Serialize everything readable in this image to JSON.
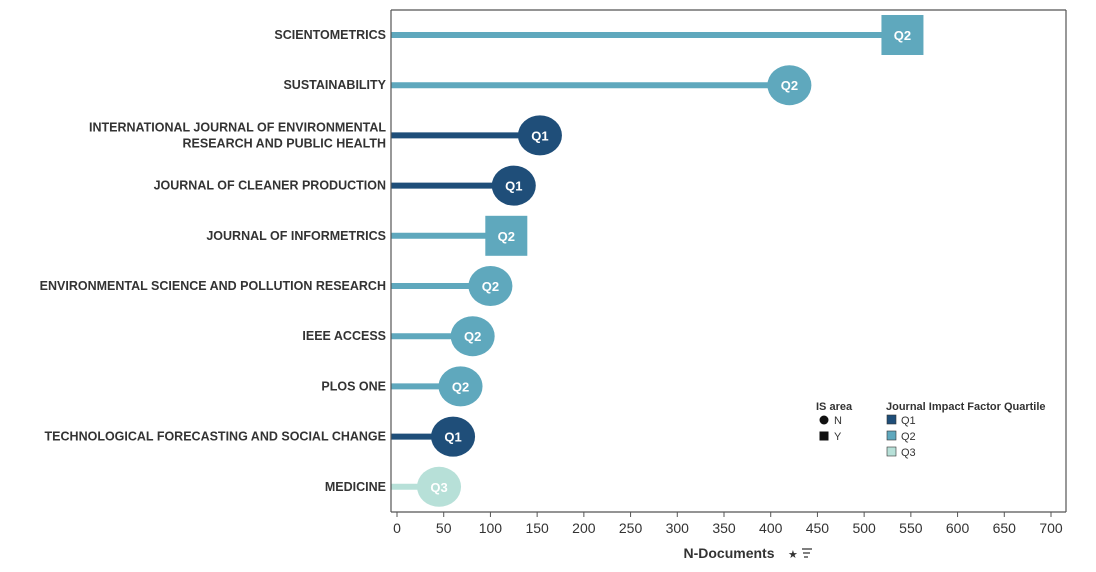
{
  "chart_data": {
    "type": "lollipop",
    "categories": [
      "SCIENTOMETRICS",
      "SUSTAINABILITY",
      "INTERNATIONAL JOURNAL OF ENVIRONMENTAL RESEARCH AND PUBLIC HEALTH",
      "JOURNAL OF CLEANER PRODUCTION",
      "JOURNAL OF INFORMETRICS",
      "ENVIRONMENTAL SCIENCE AND POLLUTION RESEARCH",
      "IEEE ACCESS",
      "PLOS ONE",
      "TECHNOLOGICAL FORECASTING AND SOCIAL CHANGE",
      "MEDICINE"
    ],
    "label_lines": [
      [
        "SCIENTOMETRICS"
      ],
      [
        "SUSTAINABILITY"
      ],
      [
        "INTERNATIONAL JOURNAL OF ENVIRONMENTAL",
        "RESEARCH AND PUBLIC HEALTH"
      ],
      [
        "JOURNAL OF CLEANER PRODUCTION"
      ],
      [
        "JOURNAL OF INFORMETRICS"
      ],
      [
        "ENVIRONMENTAL SCIENCE AND POLLUTION RESEARCH"
      ],
      [
        "IEEE ACCESS"
      ],
      [
        "PLOS ONE"
      ],
      [
        "TECHNOLOGICAL FORECASTING AND SOCIAL CHANGE"
      ],
      [
        "MEDICINE"
      ]
    ],
    "values": [
      541,
      420,
      153,
      125,
      117,
      100,
      81,
      68,
      60,
      45
    ],
    "quartile": [
      "Q2",
      "Q2",
      "Q1",
      "Q1",
      "Q2",
      "Q2",
      "Q2",
      "Q2",
      "Q1",
      "Q3"
    ],
    "is_area": [
      "Y",
      "N",
      "N",
      "N",
      "Y",
      "N",
      "N",
      "N",
      "N",
      "N"
    ],
    "xlabel": "N-Documents",
    "xlim": [
      0,
      700
    ],
    "xticks": [
      0,
      50,
      100,
      150,
      200,
      250,
      300,
      350,
      400,
      450,
      500,
      550,
      600,
      650,
      700
    ],
    "grid": false,
    "legend": {
      "placement": "bottom-right",
      "shape_title": "IS area",
      "shape_items": [
        {
          "label": "N",
          "shape": "circle"
        },
        {
          "label": "Y",
          "shape": "square"
        }
      ],
      "color_title": "Journal Impact Factor Quartile",
      "color_items": [
        {
          "label": "Q1",
          "color": "#1f4e79"
        },
        {
          "label": "Q2",
          "color": "#5fa8bd"
        },
        {
          "label": "Q3",
          "color": "#b7e0d8"
        }
      ]
    },
    "colors": {
      "Q1": "#1f4e79",
      "Q2": "#5fa8bd",
      "Q3": "#b7e0d8"
    }
  }
}
